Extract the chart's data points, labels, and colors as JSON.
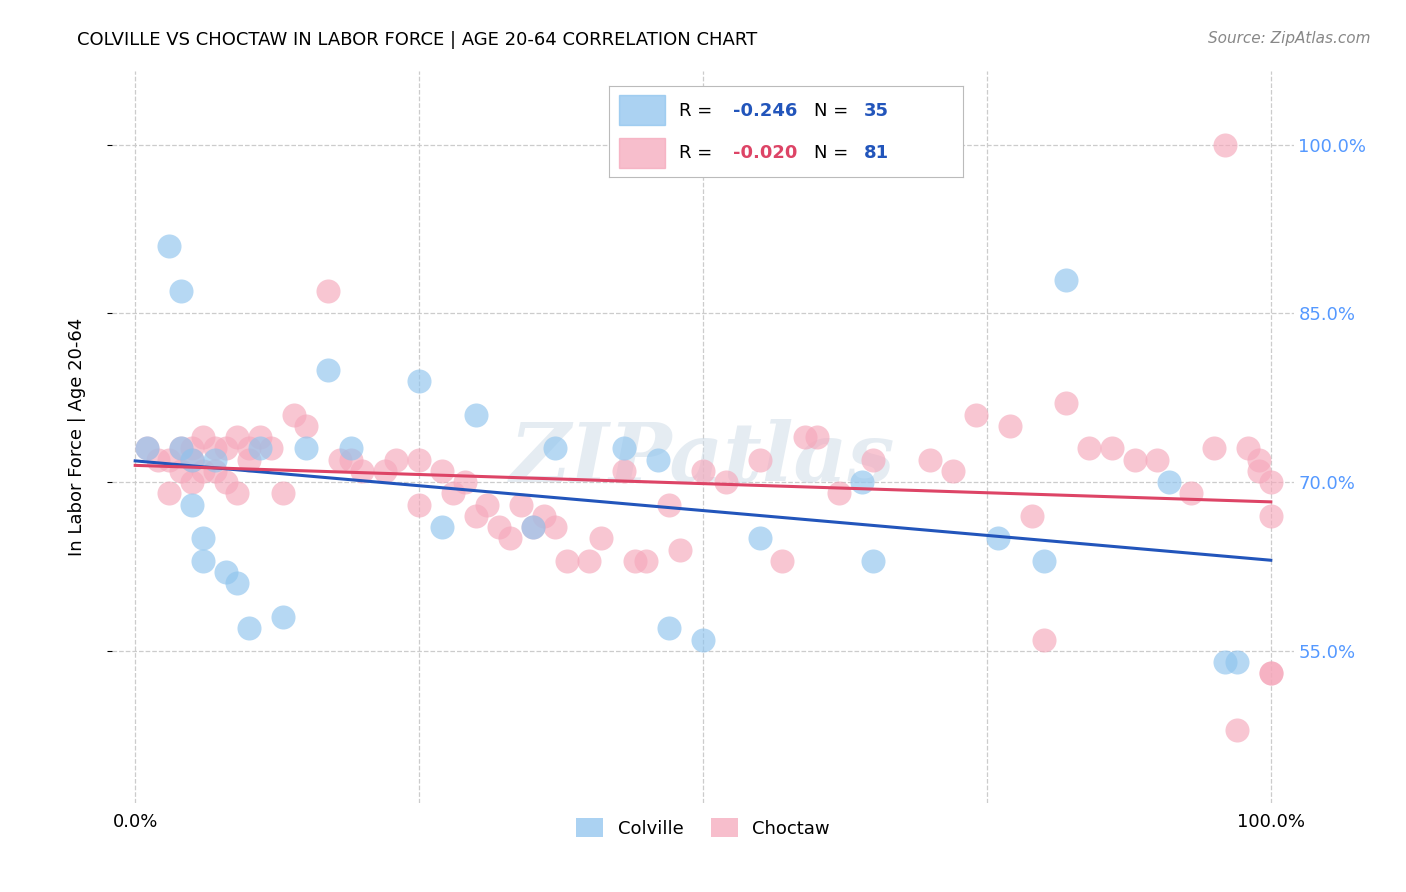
{
  "title": "COLVILLE VS CHOCTAW IN LABOR FORCE | AGE 20-64 CORRELATION CHART",
  "source": "Source: ZipAtlas.com",
  "ylabel": "In Labor Force | Age 20-64",
  "xlim": [
    -0.02,
    1.02
  ],
  "ylim": [
    0.415,
    1.065
  ],
  "yticks": [
    0.55,
    0.7,
    0.85,
    1.0
  ],
  "ytick_labels": [
    "55.0%",
    "70.0%",
    "85.0%",
    "100.0%"
  ],
  "xtick_labels": [
    "0.0%",
    "100.0%"
  ],
  "xticks": [
    0.0,
    1.0
  ],
  "colville_R": "-0.246",
  "colville_N": "35",
  "choctaw_R": "-0.020",
  "choctaw_N": "81",
  "colville_color": "#8fc4ee",
  "choctaw_color": "#f5a8bb",
  "trend_colville_color": "#2255bb",
  "trend_choctaw_color": "#dd4466",
  "colville_scatter_x": [
    0.01,
    0.03,
    0.04,
    0.04,
    0.05,
    0.05,
    0.06,
    0.06,
    0.07,
    0.08,
    0.09,
    0.1,
    0.11,
    0.13,
    0.15,
    0.17,
    0.19,
    0.25,
    0.27,
    0.3,
    0.35,
    0.37,
    0.43,
    0.46,
    0.47,
    0.5,
    0.55,
    0.64,
    0.65,
    0.76,
    0.8,
    0.82,
    0.91,
    0.96,
    0.97
  ],
  "colville_scatter_y": [
    0.73,
    0.91,
    0.87,
    0.73,
    0.72,
    0.68,
    0.65,
    0.63,
    0.72,
    0.62,
    0.61,
    0.57,
    0.73,
    0.58,
    0.73,
    0.8,
    0.73,
    0.79,
    0.66,
    0.76,
    0.66,
    0.73,
    0.73,
    0.72,
    0.57,
    0.56,
    0.65,
    0.7,
    0.63,
    0.65,
    0.63,
    0.88,
    0.7,
    0.54,
    0.54
  ],
  "choctaw_scatter_x": [
    0.01,
    0.02,
    0.03,
    0.03,
    0.04,
    0.04,
    0.05,
    0.05,
    0.05,
    0.06,
    0.06,
    0.07,
    0.07,
    0.08,
    0.08,
    0.09,
    0.09,
    0.1,
    0.1,
    0.11,
    0.12,
    0.13,
    0.14,
    0.15,
    0.17,
    0.18,
    0.19,
    0.2,
    0.22,
    0.23,
    0.25,
    0.25,
    0.27,
    0.28,
    0.29,
    0.3,
    0.31,
    0.32,
    0.33,
    0.34,
    0.35,
    0.36,
    0.37,
    0.38,
    0.4,
    0.41,
    0.43,
    0.44,
    0.45,
    0.47,
    0.48,
    0.5,
    0.52,
    0.55,
    0.57,
    0.59,
    0.6,
    0.62,
    0.65,
    0.7,
    0.72,
    0.74,
    0.77,
    0.79,
    0.8,
    0.82,
    0.84,
    0.86,
    0.88,
    0.9,
    0.93,
    0.95,
    0.96,
    0.97,
    0.98,
    0.99,
    0.99,
    1.0,
    1.0,
    1.0,
    1.0
  ],
  "choctaw_scatter_y": [
    0.73,
    0.72,
    0.72,
    0.69,
    0.73,
    0.71,
    0.73,
    0.72,
    0.7,
    0.74,
    0.71,
    0.73,
    0.71,
    0.73,
    0.7,
    0.74,
    0.69,
    0.73,
    0.72,
    0.74,
    0.73,
    0.69,
    0.76,
    0.75,
    0.87,
    0.72,
    0.72,
    0.71,
    0.71,
    0.72,
    0.72,
    0.68,
    0.71,
    0.69,
    0.7,
    0.67,
    0.68,
    0.66,
    0.65,
    0.68,
    0.66,
    0.67,
    0.66,
    0.63,
    0.63,
    0.65,
    0.71,
    0.63,
    0.63,
    0.68,
    0.64,
    0.71,
    0.7,
    0.72,
    0.63,
    0.74,
    0.74,
    0.69,
    0.72,
    0.72,
    0.71,
    0.76,
    0.75,
    0.67,
    0.56,
    0.77,
    0.73,
    0.73,
    0.72,
    0.72,
    0.69,
    0.73,
    1.0,
    0.48,
    0.73,
    0.72,
    0.71,
    0.53,
    0.7,
    0.67,
    0.53
  ],
  "watermark": "ZIPatlas",
  "background_color": "#ffffff",
  "grid_color": "#cccccc"
}
